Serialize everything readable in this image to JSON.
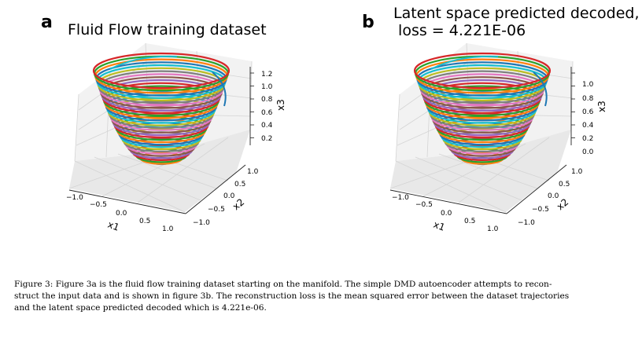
{
  "panels": [
    {
      "letter": "a",
      "title": "Fluid Flow training dataset",
      "z_ticks": [
        "1.2",
        "1.0",
        "0.8",
        "0.6",
        "0.4",
        "0.2"
      ],
      "z_label": "x3",
      "x_ticks": [
        "−1.0",
        "−0.5",
        "0.0",
        "0.5",
        "1.0"
      ],
      "x_label": "x1",
      "y_ticks": [
        "1.0",
        "0.5",
        "0.0",
        "−0.5",
        "−1.0"
      ],
      "y_label": "x2"
    },
    {
      "letter": "b",
      "title_line1": "Latent space predicted decoded,",
      "title_line2": " loss = 4.221E-06",
      "z_ticks": [
        "1.0",
        "0.8",
        "0.6",
        "0.4",
        "0.2",
        "0.0"
      ],
      "z_label": "x3",
      "x_ticks": [
        "−1.0",
        "−0.5",
        "0.0",
        "0.5",
        "1.0"
      ],
      "x_label": "x1",
      "y_ticks": [
        "1.0",
        "0.5",
        "0.0",
        "−0.5",
        "−1.0"
      ],
      "y_label": "x2"
    }
  ],
  "caption": {
    "line1": "Figure 3: Figure 3a is the fluid flow training dataset starting on the manifold. The simple DMD autoencoder attempts to recon-",
    "line2": "struct the input data and is shown in figure 3b. The reconstruction loss is the mean squared error between the dataset trajectories",
    "line3": "and the latent space predicted decoded which is 4.221e-06."
  },
  "palette": [
    "#1f77b4",
    "#ff7f0e",
    "#2ca02c",
    "#d62728",
    "#9467bd",
    "#8c564b",
    "#e377c2",
    "#7f7f7f",
    "#bcbd22",
    "#17becf"
  ]
}
